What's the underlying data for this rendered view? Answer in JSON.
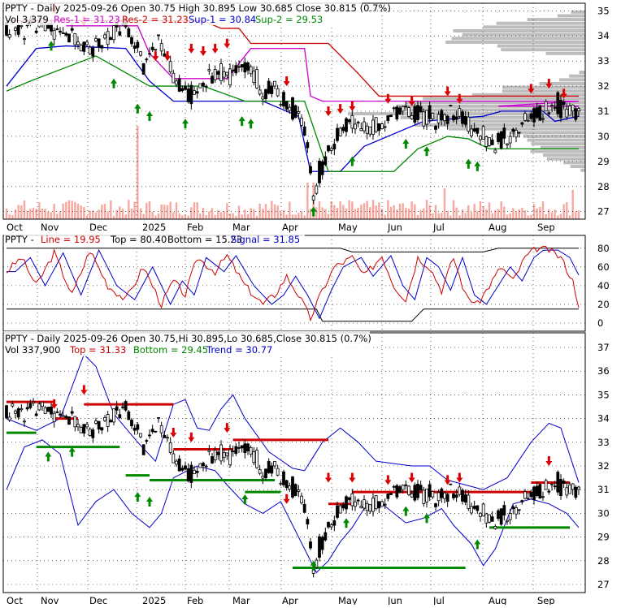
{
  "colors": {
    "candle": "#000000",
    "resistance": "#cc0000",
    "support": "#008800",
    "res2": "#cc00cc",
    "sup1": "#0000cc",
    "volume": "#f4a8a0",
    "profile": "#bdbdbd",
    "grid": "#000000",
    "up_arrow": "#008800",
    "down_arrow": "#dd0000"
  },
  "months": [
    "Oct",
    "Nov",
    "Dec",
    "2025",
    "Feb",
    "Mar",
    "Apr",
    "May",
    "Jun",
    "Jul",
    "Aug",
    "Sep"
  ],
  "panel1": {
    "header_ticker": "PPTY - Daily 2025-09-26 Open 30.75  High 30.895  Low 30.685  Close 30.815 (0.7%)",
    "header_vol": "Vol 3,379",
    "res1": "Res-1 = 31.23",
    "res2": "Res-2 = 31.23",
    "sup1": "Sup-1 = 30.84",
    "sup2": "Sup-2 = 29.53",
    "y_ticks": [
      "35",
      "34",
      "33",
      "32",
      "31",
      "30",
      "29",
      "28",
      "27"
    ]
  },
  "panel2": {
    "ticker": "PPTY - ",
    "line": "Line = 19.95",
    "top": "Top = 80.40",
    "bottom": "Bottom = 15.23",
    "signal": "Signal = 31.85",
    "y_ticks": [
      "80",
      "60",
      "40",
      "20",
      "0"
    ]
  },
  "panel3": {
    "header_ticker": "PPTY - Daily 2025-09-26 Open 30.75,Hi 30.895,Lo 30.685,Close 30.815 (0.7%)",
    "header_vol": "Vol 337,900",
    "top": "Top = 31.33",
    "bottom": "Bottom = 29.45",
    "trend": "Trend = 30.77",
    "y_ticks": [
      "37",
      "36",
      "35",
      "34",
      "33",
      "32",
      "31",
      "30",
      "29",
      "28",
      "27"
    ]
  },
  "chart_data": {
    "type": "candlestick",
    "ticker": "PPTY",
    "date": "2025-09-26",
    "open": 30.75,
    "high": 30.895,
    "low": 30.685,
    "close": 30.815,
    "change_pct": 0.7,
    "price_path": [
      [
        0,
        34.2
      ],
      [
        10,
        34.4
      ],
      [
        20,
        34.0
      ],
      [
        28,
        33.4
      ],
      [
        35,
        34.1
      ],
      [
        40,
        34.3
      ],
      [
        46,
        33.0
      ],
      [
        52,
        33.6
      ],
      [
        58,
        32.0
      ],
      [
        62,
        31.7
      ],
      [
        66,
        32.2
      ],
      [
        70,
        32.6
      ],
      [
        74,
        32.4
      ],
      [
        78,
        32.6
      ],
      [
        82,
        32.8
      ],
      [
        86,
        31.7
      ],
      [
        90,
        31.9
      ],
      [
        94,
        31.3
      ],
      [
        98,
        30.9
      ],
      [
        101,
        29.5
      ],
      [
        103,
        27.6
      ],
      [
        105,
        28.6
      ],
      [
        108,
        29.3
      ],
      [
        112,
        30.2
      ],
      [
        116,
        30.6
      ],
      [
        120,
        30.3
      ],
      [
        124,
        30.4
      ],
      [
        128,
        30.7
      ],
      [
        132,
        31.0
      ],
      [
        136,
        30.8
      ],
      [
        140,
        30.9
      ],
      [
        144,
        30.7
      ],
      [
        148,
        30.8
      ],
      [
        152,
        30.9
      ],
      [
        156,
        30.2
      ],
      [
        160,
        30.0
      ],
      [
        164,
        29.6
      ],
      [
        168,
        29.9
      ],
      [
        172,
        30.3
      ],
      [
        176,
        30.8
      ],
      [
        180,
        31.0
      ],
      [
        184,
        31.3
      ],
      [
        188,
        31.1
      ],
      [
        192,
        30.8
      ]
    ],
    "stoch_path": [
      [
        0,
        55
      ],
      [
        5,
        70
      ],
      [
        10,
        40
      ],
      [
        16,
        75
      ],
      [
        22,
        30
      ],
      [
        28,
        78
      ],
      [
        34,
        40
      ],
      [
        40,
        25
      ],
      [
        46,
        60
      ],
      [
        52,
        20
      ],
      [
        56,
        45
      ],
      [
        60,
        30
      ],
      [
        64,
        70
      ],
      [
        70,
        55
      ],
      [
        74,
        72
      ],
      [
        80,
        40
      ],
      [
        86,
        20
      ],
      [
        90,
        30
      ],
      [
        94,
        50
      ],
      [
        98,
        30
      ],
      [
        102,
        5
      ],
      [
        106,
        35
      ],
      [
        110,
        60
      ],
      [
        116,
        70
      ],
      [
        120,
        50
      ],
      [
        126,
        72
      ],
      [
        130,
        40
      ],
      [
        134,
        25
      ],
      [
        138,
        70
      ],
      [
        142,
        60
      ],
      [
        146,
        35
      ],
      [
        150,
        70
      ],
      [
        154,
        30
      ],
      [
        158,
        20
      ],
      [
        162,
        40
      ],
      [
        166,
        60
      ],
      [
        170,
        45
      ],
      [
        174,
        70
      ],
      [
        178,
        80
      ],
      [
        182,
        78
      ],
      [
        186,
        70
      ],
      [
        190,
        45
      ],
      [
        192,
        20
      ]
    ]
  }
}
